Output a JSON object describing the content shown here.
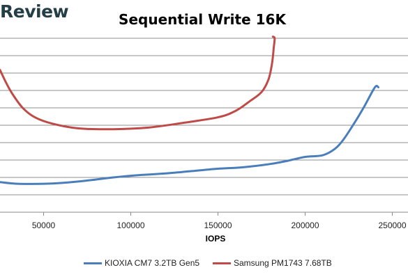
{
  "logo": {
    "text": "Review"
  },
  "chart_data": {
    "type": "line",
    "title": "Sequential Write 16K",
    "xlabel": "IOPS",
    "ylabel": "",
    "xlim": [
      25000,
      259000
    ],
    "ylim": [
      0,
      11
    ],
    "xticks": [
      50000,
      100000,
      150000,
      200000,
      250000
    ],
    "grid": "horizontal",
    "legend_position": "bottom",
    "series": [
      {
        "name": "KIOXIA CM7 3.2TB Gen5",
        "color": "#4a7ebb",
        "x": [
          25000,
          35000,
          50000,
          60000,
          75000,
          90000,
          105000,
          120000,
          135000,
          150000,
          165000,
          180000,
          190000,
          200000,
          210000,
          217000,
          222000,
          228000,
          234000,
          240000,
          242000
        ],
        "y": [
          1.9,
          1.8,
          1.8,
          1.85,
          2.0,
          2.2,
          2.35,
          2.45,
          2.6,
          2.75,
          2.85,
          3.05,
          3.25,
          3.5,
          3.6,
          4.0,
          4.6,
          5.6,
          6.7,
          7.9,
          7.9
        ]
      },
      {
        "name": "Samsung PM1743 7.68TB",
        "color": "#be4b48",
        "x": [
          25000,
          28000,
          32000,
          38000,
          45000,
          55000,
          70000,
          90000,
          110000,
          130000,
          150000,
          160000,
          168000,
          175000,
          179000,
          181000,
          182000,
          182500,
          181500
        ],
        "y": [
          9.0,
          8.3,
          7.5,
          6.6,
          6.0,
          5.6,
          5.3,
          5.25,
          5.35,
          5.65,
          6.0,
          6.4,
          7.0,
          7.6,
          8.4,
          9.4,
          10.4,
          11.0,
          11.1
        ]
      }
    ]
  }
}
